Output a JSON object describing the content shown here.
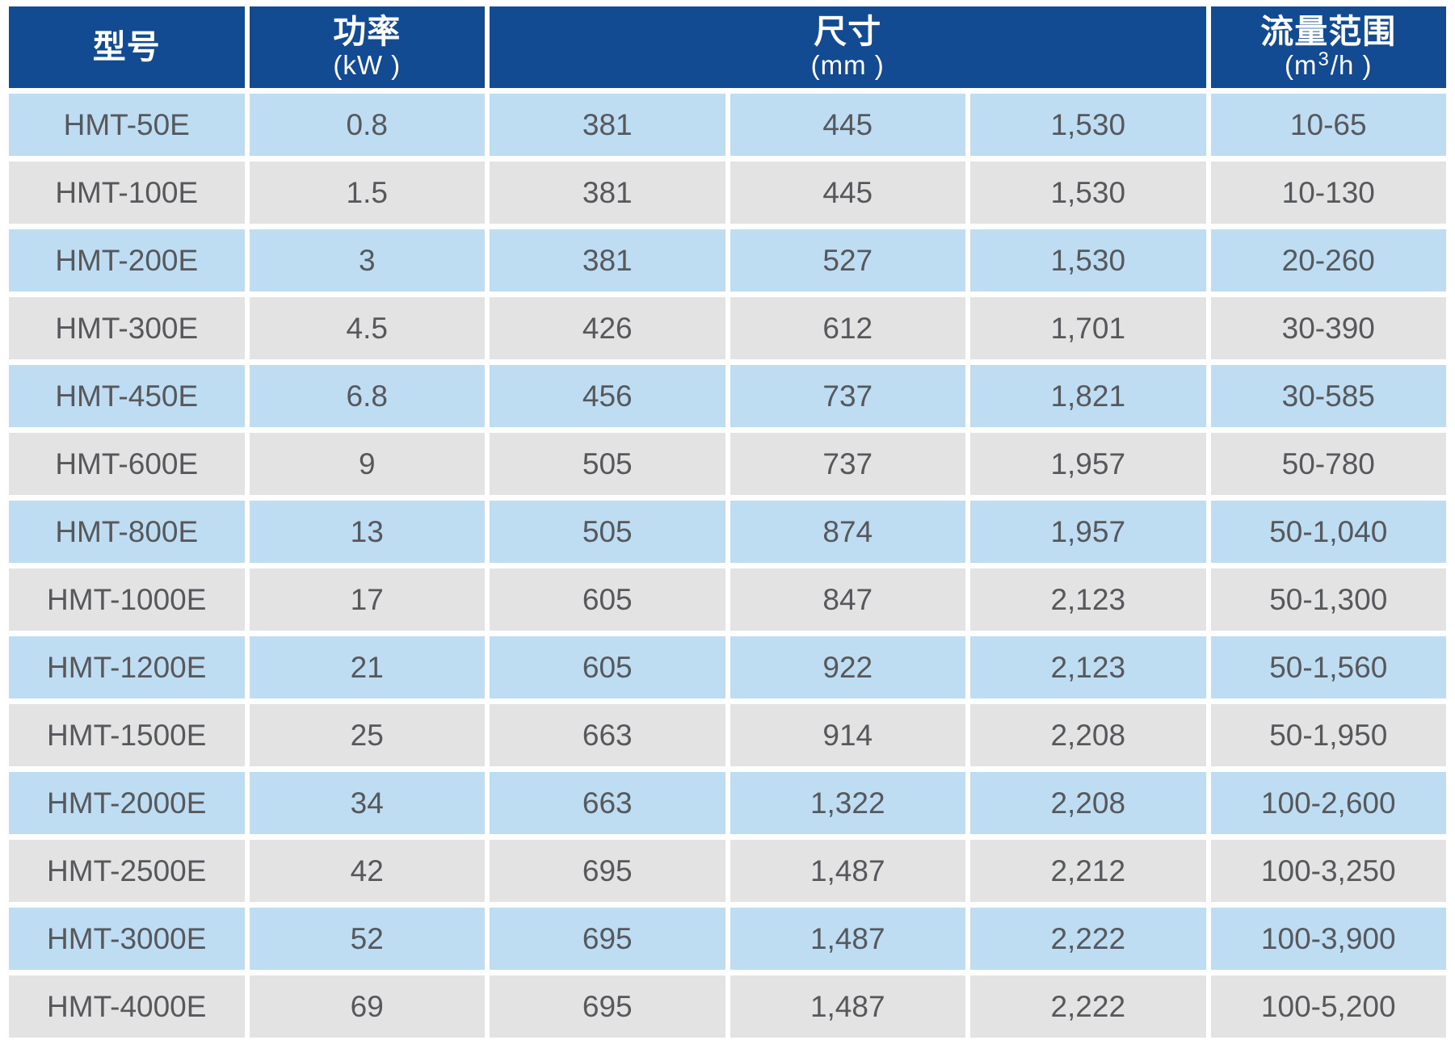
{
  "colors": {
    "header_bg": "#134B93",
    "header_text": "#FFFFFF",
    "row_blue": "#BEDCF2",
    "row_gray": "#E3E3E4",
    "cell_text": "#56585B"
  },
  "table": {
    "header": {
      "model_title": "型号",
      "power_title": "功率",
      "power_unit": "(kW )",
      "dims_title": "尺寸",
      "dims_unit": "(mm )",
      "flow_title": "流量范围",
      "flow_unit_prefix": "(m",
      "flow_unit_sup": "3",
      "flow_unit_suffix": "/h )"
    },
    "rows": [
      {
        "model": "HMT-50E",
        "power": "0.8",
        "dim1": "381",
        "dim2": "445",
        "dim3": "1,530",
        "flow": "10-65"
      },
      {
        "model": "HMT-100E",
        "power": "1.5",
        "dim1": "381",
        "dim2": "445",
        "dim3": "1,530",
        "flow": "10-130"
      },
      {
        "model": "HMT-200E",
        "power": "3",
        "dim1": "381",
        "dim2": "527",
        "dim3": "1,530",
        "flow": "20-260"
      },
      {
        "model": "HMT-300E",
        "power": "4.5",
        "dim1": "426",
        "dim2": "612",
        "dim3": "1,701",
        "flow": "30-390"
      },
      {
        "model": "HMT-450E",
        "power": "6.8",
        "dim1": "456",
        "dim2": "737",
        "dim3": "1,821",
        "flow": "30-585"
      },
      {
        "model": "HMT-600E",
        "power": "9",
        "dim1": "505",
        "dim2": "737",
        "dim3": "1,957",
        "flow": "50-780"
      },
      {
        "model": "HMT-800E",
        "power": "13",
        "dim1": "505",
        "dim2": "874",
        "dim3": "1,957",
        "flow": "50-1,040"
      },
      {
        "model": "HMT-1000E",
        "power": "17",
        "dim1": "605",
        "dim2": "847",
        "dim3": "2,123",
        "flow": "50-1,300"
      },
      {
        "model": "HMT-1200E",
        "power": "21",
        "dim1": "605",
        "dim2": "922",
        "dim3": "2,123",
        "flow": "50-1,560"
      },
      {
        "model": "HMT-1500E",
        "power": "25",
        "dim1": "663",
        "dim2": "914",
        "dim3": "2,208",
        "flow": "50-1,950"
      },
      {
        "model": "HMT-2000E",
        "power": "34",
        "dim1": "663",
        "dim2": "1,322",
        "dim3": "2,208",
        "flow": "100-2,600"
      },
      {
        "model": "HMT-2500E",
        "power": "42",
        "dim1": "695",
        "dim2": "1,487",
        "dim3": "2,212",
        "flow": "100-3,250"
      },
      {
        "model": "HMT-3000E",
        "power": "52",
        "dim1": "695",
        "dim2": "1,487",
        "dim3": "2,222",
        "flow": "100-3,900"
      },
      {
        "model": "HMT-4000E",
        "power": "69",
        "dim1": "695",
        "dim2": "1,487",
        "dim3": "2,222",
        "flow": "100-5,200"
      }
    ]
  }
}
